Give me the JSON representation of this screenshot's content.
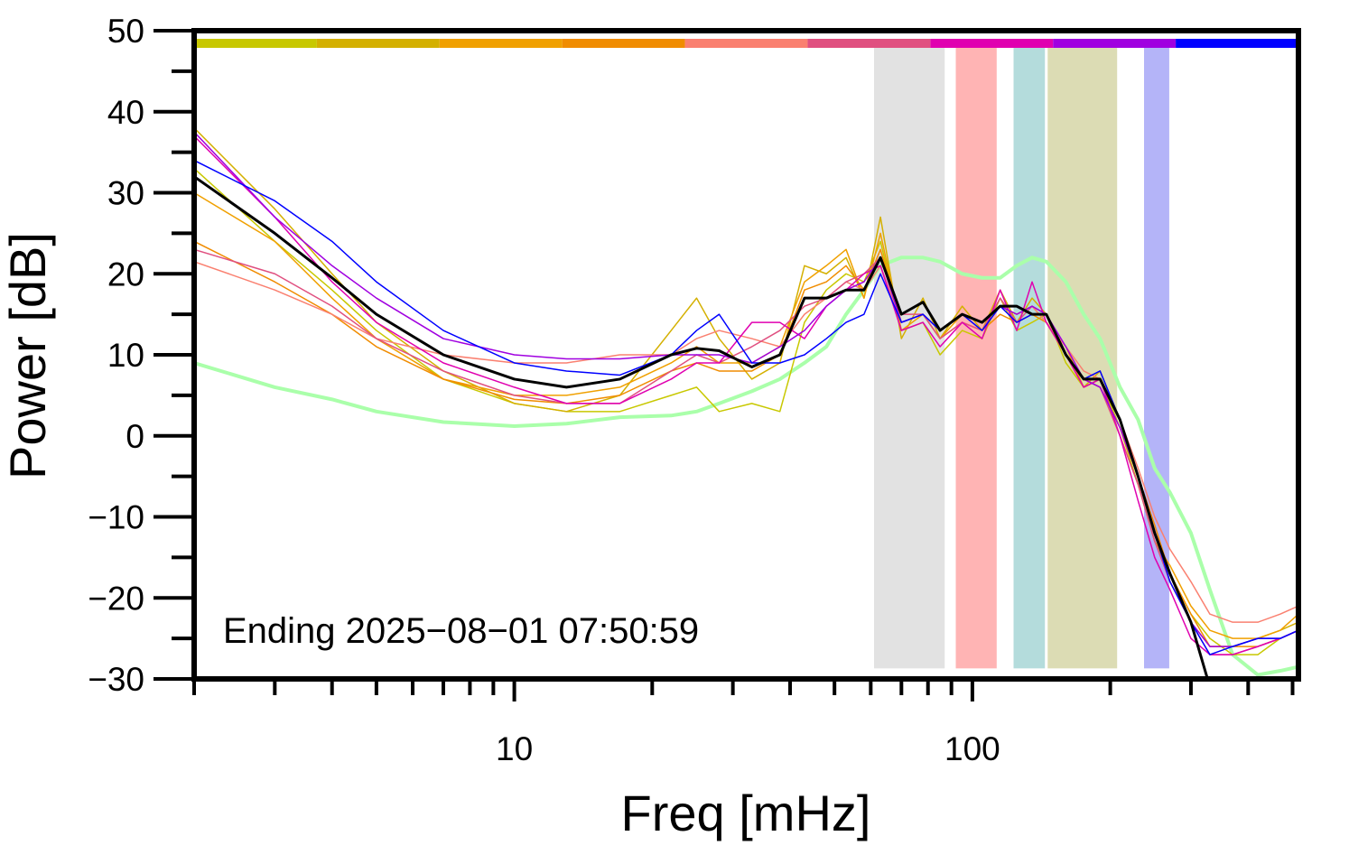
{
  "chart_data": {
    "type": "line",
    "xlabel": "Freq [mHz]",
    "ylabel": "Power [dB]",
    "annotation": "Ending 2025−08−01 07:50:59",
    "xscale": "log",
    "xlim": [
      2,
      515
    ],
    "ylim": [
      -30,
      50
    ],
    "xticks": [
      10,
      100
    ],
    "xminorticks": [
      2,
      3,
      4,
      5,
      6,
      7,
      8,
      9,
      20,
      30,
      40,
      50,
      60,
      70,
      80,
      90,
      200,
      300,
      400,
      500
    ],
    "yticks": [
      {
        "value": -30,
        "label": "−30"
      },
      {
        "value": -20,
        "label": "−20"
      },
      {
        "value": -10,
        "label": "−10"
      },
      0,
      10,
      20,
      30,
      40,
      50
    ],
    "yminorticks": [
      -25,
      -15,
      -5,
      5,
      15,
      25,
      35,
      45
    ],
    "color_bar": [
      "#c8c800",
      "#d4b000",
      "#f0a000",
      "#f08c00",
      "#fa8070",
      "#e05080",
      "#e000b0",
      "#a000e0",
      "#0000ff"
    ],
    "band_ylim": [
      -28.7,
      48
    ],
    "bands": [
      {
        "x": [
          61,
          87
        ],
        "color": "#e2e2e2"
      },
      {
        "x": [
          92,
          113
        ],
        "color": "#ffb4b4"
      },
      {
        "x": [
          123,
          144
        ],
        "color": "#b4dcdc"
      },
      {
        "x": [
          146,
          207
        ],
        "color": "#dcdcb4"
      },
      {
        "x": [
          237,
          269
        ],
        "color": "#b4b4f8"
      }
    ],
    "x": [
      2,
      3,
      4,
      5,
      7,
      10,
      13,
      17,
      22,
      25,
      28,
      33,
      38,
      43,
      48,
      53,
      58,
      63,
      70,
      78,
      85,
      95,
      105,
      115,
      125,
      135,
      145,
      160,
      175,
      190,
      210,
      230,
      250,
      270,
      300,
      330,
      370,
      420,
      470,
      515
    ],
    "series": [
      {
        "color": "#aaffaa",
        "width": 4,
        "values": [
          9,
          6,
          4.5,
          3,
          1.7,
          1.2,
          1.5,
          2.3,
          2.5,
          3,
          4,
          5.5,
          7,
          9,
          11,
          15,
          18,
          21,
          22,
          22,
          21.5,
          20,
          19.5,
          19.5,
          21,
          22,
          21.5,
          19,
          15,
          12,
          6,
          2,
          -4,
          -7,
          -12,
          -19,
          -27,
          -29.5,
          -29,
          -28.5
        ]
      },
      {
        "color": "#c8c800",
        "width": 1.5,
        "values": [
          33,
          24,
          18,
          13,
          7,
          4,
          3,
          3,
          5,
          6,
          3,
          4,
          3,
          14,
          18,
          20,
          19,
          24,
          13,
          14,
          10,
          13,
          12,
          17,
          13,
          14,
          15,
          9,
          6,
          7,
          1,
          -6,
          -13,
          -17,
          -22,
          -25,
          -27,
          -27,
          -25,
          -24
        ]
      },
      {
        "color": "#d4b000",
        "width": 1.5,
        "values": [
          38,
          28,
          20,
          14,
          8,
          4,
          3,
          5,
          13,
          17,
          12,
          7,
          9,
          21,
          20,
          22,
          17,
          27,
          12,
          17,
          12,
          16,
          13,
          18,
          14,
          17,
          15,
          10,
          6,
          8,
          2,
          -5,
          -12,
          -18,
          -23,
          -26,
          -26,
          -25,
          -24,
          -23
        ]
      },
      {
        "color": "#f0a000",
        "width": 1.5,
        "values": [
          30,
          24,
          17,
          12,
          7,
          5,
          5,
          6,
          9,
          11,
          9,
          9,
          11,
          19,
          21,
          23,
          17,
          25,
          13,
          15,
          12,
          15,
          14,
          16,
          15,
          16,
          14,
          11,
          6,
          7,
          0,
          -6,
          -13,
          -16,
          -21,
          -24,
          -25,
          -25,
          -24,
          -22
        ]
      },
      {
        "color": "#f08c00",
        "width": 1.5,
        "values": [
          24,
          19,
          15,
          11,
          7,
          4.5,
          4,
          5,
          8,
          9,
          8,
          8,
          10,
          18,
          19,
          21,
          18,
          23,
          14,
          15,
          12,
          14,
          13,
          15,
          14,
          15,
          14,
          10,
          7,
          6,
          1,
          -5,
          -11,
          -17,
          -22,
          -26,
          -26,
          -26,
          -25,
          -24
        ]
      },
      {
        "color": "#fa8070",
        "width": 1.5,
        "values": [
          21.5,
          18,
          15,
          12,
          10,
          9,
          9,
          10,
          10,
          12,
          13,
          12,
          11,
          15,
          17,
          19,
          18,
          21,
          14,
          15,
          13,
          15,
          14,
          16,
          15,
          16,
          14,
          11,
          8,
          7,
          2,
          -4,
          -10,
          -14,
          -18,
          -22,
          -23,
          -23,
          -22,
          -21
        ]
      },
      {
        "color": "#e05080",
        "width": 1.5,
        "values": [
          23,
          20,
          16,
          12,
          8,
          5,
          4,
          4,
          8,
          10,
          9,
          11,
          13,
          16,
          17,
          19,
          20,
          22,
          15,
          15,
          12,
          14,
          13,
          17,
          14,
          16,
          15,
          10,
          7,
          6,
          0,
          -6,
          -13,
          -18,
          -23,
          -27,
          -27,
          -26,
          -25,
          -24
        ]
      },
      {
        "color": "#e000b0",
        "width": 1.5,
        "values": [
          37,
          27,
          19,
          14,
          9,
          6,
          4,
          4,
          7,
          9,
          9,
          14,
          14,
          12,
          16,
          18,
          20,
          21,
          13,
          14,
          11,
          14,
          12,
          18,
          13,
          19,
          14,
          10,
          6,
          7,
          0,
          -8,
          -15,
          -19,
          -25,
          -27,
          -27,
          -26,
          -25,
          -24
        ]
      },
      {
        "color": "#a000e0",
        "width": 1.5,
        "values": [
          37.5,
          27,
          21,
          17,
          12,
          10,
          9.5,
          9.5,
          10,
          10,
          10,
          9,
          11,
          13,
          16,
          18,
          19,
          22,
          14,
          15,
          13,
          15,
          14,
          16,
          15,
          16,
          15,
          11,
          7,
          6,
          1,
          -5,
          -12,
          -17,
          -23,
          -26,
          -26,
          -25,
          -25,
          -24
        ]
      },
      {
        "color": "#0000ff",
        "width": 1.5,
        "values": [
          34,
          29,
          24,
          19,
          13,
          9,
          8,
          7.5,
          10,
          13,
          15,
          9,
          9,
          10,
          12,
          14,
          15,
          20,
          14,
          15,
          13,
          15,
          13,
          16,
          14,
          15,
          15,
          10,
          7,
          8,
          2,
          -5,
          -12,
          -18,
          -23,
          -27,
          -26,
          -25,
          -25,
          -24
        ]
      },
      {
        "color": "#000000",
        "width": 3,
        "values": [
          32,
          25,
          19.5,
          15,
          10,
          7,
          6,
          7,
          10,
          10.8,
          10.5,
          8.5,
          10,
          17,
          17,
          18,
          18,
          22,
          15,
          16.5,
          13,
          15,
          14,
          16,
          16,
          15,
          15,
          10,
          7,
          7,
          2,
          -5,
          -12,
          -17,
          -23,
          -31,
          null,
          null,
          null,
          null
        ]
      }
    ]
  }
}
